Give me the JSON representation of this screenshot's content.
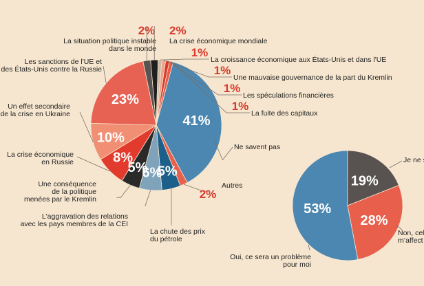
{
  "chart_data": [
    {
      "type": "pie",
      "slices": [
        {
          "label": "Ne savent pas",
          "value": 41,
          "display": "41%",
          "color": "#4b87b1"
        },
        {
          "label": "Autres",
          "value": 2,
          "display": "2%",
          "color": "#e8604c"
        },
        {
          "label": "La chute des prix du pétrole",
          "value": 5,
          "display": "5%",
          "color": "#1d5f8b"
        },
        {
          "label": "L'aggravation des relations avec les pays membres de la CEI",
          "value": 6,
          "display": "6%",
          "color": "#7fa3bb"
        },
        {
          "label": "Une conséquence de la politique menées par le Kremlin",
          "value": 5,
          "display": "5%",
          "color": "#2a2a2a"
        },
        {
          "label": "La crise économique en Russie",
          "value": 8,
          "display": "8%",
          "color": "#e33a2e"
        },
        {
          "label": "Un effet secondaire de la crise en Ukraine",
          "value": 10,
          "display": "10%",
          "color": "#f08f73"
        },
        {
          "label": "Les sanctions de l'UE et des États-Unis contre la Russie",
          "value": 23,
          "display": "23%",
          "color": "#e86254"
        },
        {
          "label": "La situation politique instable dans le monde",
          "value": 2,
          "display": "2%",
          "color": "#585250"
        },
        {
          "label": "La crise économique mondiale",
          "value": 2,
          "display": "2%",
          "color": "#1f1f1f"
        },
        {
          "label": "La croissance économique aux États-Unis et dans l'UE",
          "value": 1,
          "display": "1%",
          "color": "#c9b8a5"
        },
        {
          "label": "Une mauvaise gouvernance de la part du Kremlin",
          "value": 1,
          "display": "1%",
          "color": "#f2a08a"
        },
        {
          "label": "Les spéculations financières",
          "value": 1,
          "display": "1%",
          "color": "#d83a2e"
        },
        {
          "label": "La fuite des capitaux",
          "value": 1,
          "display": "1%",
          "color": "#e85a48"
        }
      ]
    },
    {
      "type": "pie",
      "slices": [
        {
          "label": "Oui, ce sera un problème pour moi",
          "value": 53,
          "display": "53%",
          "color": "#4b87b1"
        },
        {
          "label": "Non, cela ne m'affect",
          "value": 28,
          "display": "28%",
          "color": "#e8604c"
        },
        {
          "label": "Je ne s",
          "value": 19,
          "display": "19%",
          "color": "#585250"
        }
      ]
    }
  ]
}
